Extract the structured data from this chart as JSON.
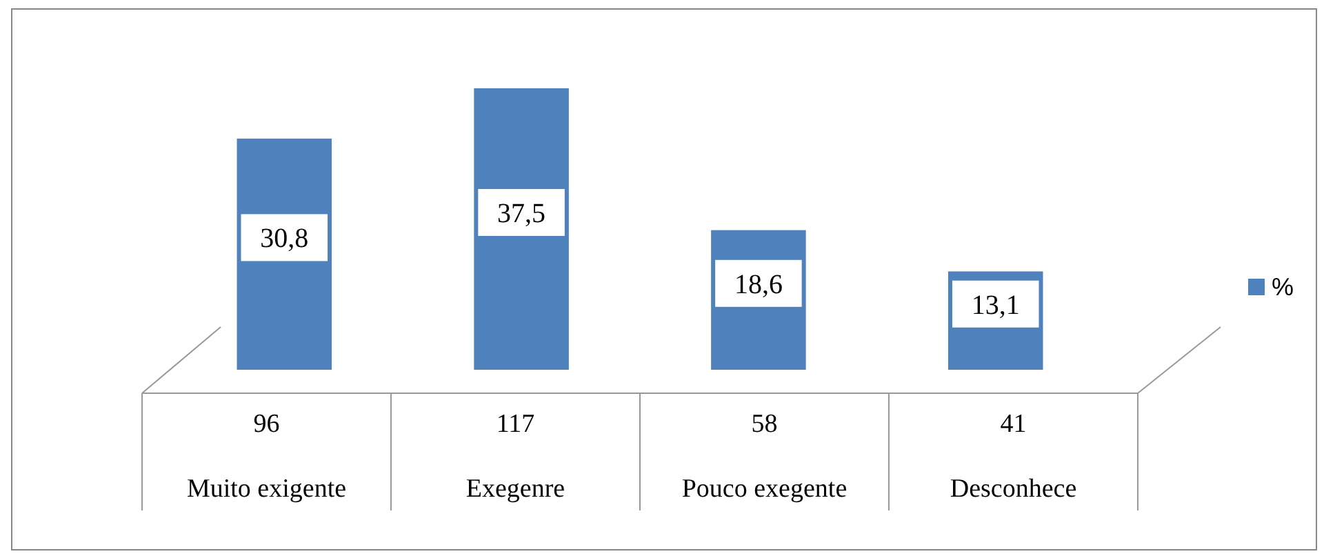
{
  "chart_data": {
    "type": "bar",
    "categories": [
      "Muito exigente",
      "Exegenre",
      "Pouco exegente",
      "Desconhece"
    ],
    "series": [
      {
        "name": "%",
        "color": "#4f81bd",
        "values": [
          30.8,
          37.5,
          18.6,
          13.1
        ],
        "value_labels": [
          "30,8",
          "37,5",
          "18,6",
          "13,1"
        ]
      }
    ],
    "annotations": [
      "96",
      "117",
      "58",
      "41"
    ],
    "legend": "right"
  }
}
